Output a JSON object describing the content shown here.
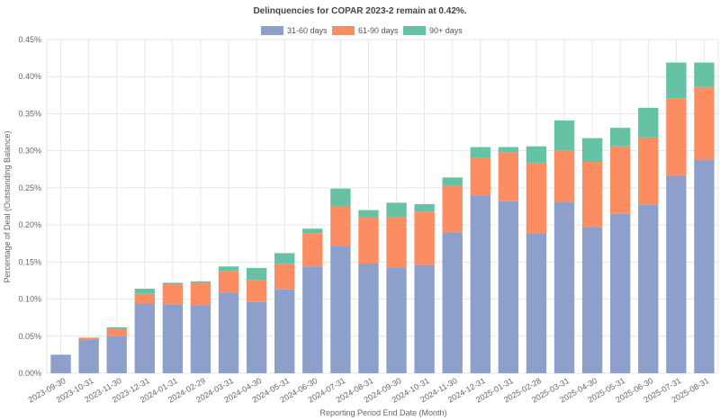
{
  "chart_data": {
    "type": "bar",
    "stacked": true,
    "title": "Delinquencies for COPAR 2023-2 remain at 0.42%.",
    "xlabel": "Reporting Period End Date (Month)",
    "ylabel": "Percentage of Deal (Outstanding Balance)",
    "ylim": [
      0,
      0.45
    ],
    "yticks": [
      "0.00%",
      "0.05%",
      "0.10%",
      "0.15%",
      "0.20%",
      "0.25%",
      "0.30%",
      "0.35%",
      "0.40%",
      "0.45%"
    ],
    "grid": true,
    "legend_position": "top-center",
    "categories": [
      "2023-09-30",
      "2023-10-31",
      "2023-11-30",
      "2023-12-31",
      "2024-01-31",
      "2024-02-29",
      "2024-03-31",
      "2024-04-30",
      "2024-05-31",
      "2024-06-30",
      "2024-07-31",
      "2024-08-31",
      "2024-09-30",
      "2024-10-31",
      "2024-11-30",
      "2024-12-31",
      "2025-01-31",
      "2025-02-28",
      "2025-03-31",
      "2025-04-30",
      "2025-05-31",
      "2025-06-30",
      "2025-07-31",
      "2025-08-31"
    ],
    "series": [
      {
        "name": "31-60 days",
        "color": "#8da0cb",
        "values": [
          0.025,
          0.045,
          0.05,
          0.094,
          0.093,
          0.091,
          0.108,
          0.096,
          0.113,
          0.144,
          0.171,
          0.148,
          0.143,
          0.146,
          0.19,
          0.24,
          0.232,
          0.188,
          0.231,
          0.197,
          0.215,
          0.227,
          0.267,
          0.288
        ]
      },
      {
        "name": "61-90 days",
        "color": "#fc8d62",
        "values": [
          0.0,
          0.003,
          0.01,
          0.013,
          0.027,
          0.031,
          0.03,
          0.03,
          0.034,
          0.045,
          0.054,
          0.062,
          0.068,
          0.072,
          0.063,
          0.051,
          0.066,
          0.095,
          0.069,
          0.088,
          0.091,
          0.091,
          0.104,
          0.098
        ]
      },
      {
        "name": "90+ days",
        "color": "#66c2a5",
        "values": [
          0.0,
          0.0,
          0.002,
          0.007,
          0.002,
          0.002,
          0.006,
          0.016,
          0.015,
          0.006,
          0.024,
          0.01,
          0.019,
          0.01,
          0.011,
          0.014,
          0.007,
          0.023,
          0.041,
          0.032,
          0.025,
          0.04,
          0.048,
          0.033
        ]
      }
    ]
  }
}
